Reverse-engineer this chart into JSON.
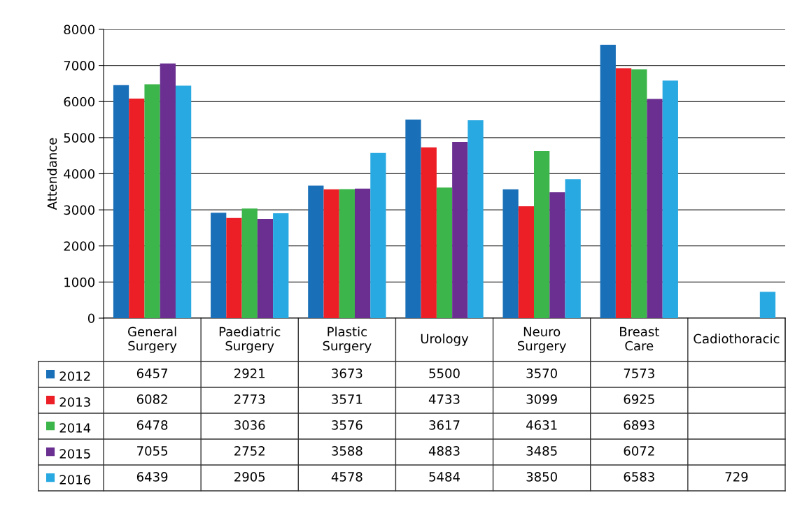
{
  "chart_data": {
    "type": "bar",
    "ylabel": "Attendance",
    "categories": [
      "General Surgery",
      "Paediatric Surgery",
      "Plastic Surgery",
      "Urology",
      "Neuro Surgery",
      "Breast Care",
      "Cadiothoracic"
    ],
    "series": [
      {
        "name": "2012",
        "color": "#1a70b8",
        "values": [
          6457,
          2921,
          3673,
          5500,
          3570,
          7573,
          null
        ]
      },
      {
        "name": "2013",
        "color": "#ec1f27",
        "values": [
          6082,
          2773,
          3571,
          4733,
          3099,
          6925,
          null
        ]
      },
      {
        "name": "2014",
        "color": "#3cb54a",
        "values": [
          6478,
          3036,
          3576,
          3617,
          4631,
          6893,
          null
        ]
      },
      {
        "name": "2015",
        "color": "#6a2f91",
        "values": [
          7055,
          2752,
          3588,
          4883,
          3485,
          6072,
          null
        ]
      },
      {
        "name": "2016",
        "color": "#29a9e1",
        "values": [
          6439,
          2905,
          4578,
          5484,
          3850,
          6583,
          729
        ]
      }
    ],
    "ylim": [
      0,
      8000
    ],
    "yticks": [
      0,
      1000,
      2000,
      3000,
      4000,
      5000,
      6000,
      7000,
      8000
    ],
    "grid": "y",
    "legend": "bottom",
    "data_labels": true
  }
}
